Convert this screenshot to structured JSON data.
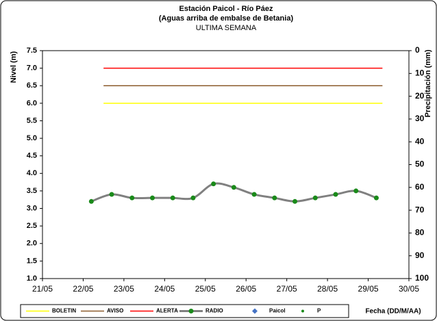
{
  "chart_data": {
    "type": "line",
    "title": "Estación Paicol  - Río Páez",
    "subtitle": "(Aguas arriba de embalse de Betania)",
    "period": "ULTIMA SEMANA",
    "y_label": "Nivel (m)",
    "y2_label": "Precipitación (mm)",
    "x_label": "Fecha (DD/M/AA)",
    "xlim": [
      21,
      30
    ],
    "xticks": [
      {
        "value": 21,
        "label": "21/05"
      },
      {
        "value": 22,
        "label": "22/05"
      },
      {
        "value": 23,
        "label": "23/05"
      },
      {
        "value": 24,
        "label": "24/05"
      },
      {
        "value": 25,
        "label": "25/05"
      },
      {
        "value": 26,
        "label": "26/05"
      },
      {
        "value": 27,
        "label": "27/05"
      },
      {
        "value": 28,
        "label": "28/05"
      },
      {
        "value": 29,
        "label": "29/05"
      },
      {
        "value": 30,
        "label": "30/05"
      }
    ],
    "ylim": [
      1,
      7.5
    ],
    "yticks": [
      {
        "value": 1,
        "label": "1.0"
      },
      1.5,
      {
        "value": 2,
        "label": "2.0"
      },
      2.5,
      {
        "value": 3,
        "label": "3.0"
      },
      3.5,
      {
        "value": 4,
        "label": "4.0"
      },
      4.5,
      {
        "value": 5,
        "label": "5.0"
      },
      5.5,
      {
        "value": 6,
        "label": "6.0"
      },
      6.5,
      {
        "value": 7,
        "label": "7.0"
      },
      7.5
    ],
    "y2lim": [
      100,
      0
    ],
    "y2ticks": [
      0,
      10,
      20,
      30,
      40,
      50,
      60,
      70,
      80,
      90,
      100
    ],
    "grid": false,
    "series": [
      {
        "name": "BOLETIN",
        "color": "#ffff00",
        "marker": "none",
        "x": [
          22.5,
          29.35
        ],
        "values": [
          6,
          6
        ]
      },
      {
        "name": "AVISO",
        "color": "#8b5a2b",
        "marker": "none",
        "x": [
          22.5,
          29.35
        ],
        "values": [
          6.5,
          6.5
        ]
      },
      {
        "name": "ALERTA",
        "color": "#ff0000",
        "marker": "none",
        "x": [
          22.5,
          29.35
        ],
        "values": [
          7,
          7
        ]
      },
      {
        "name": "RADIO",
        "color": "#808080",
        "marker": "circle",
        "marker_color": "#1a8a1a",
        "x": [
          22.2,
          22.7,
          23.2,
          23.7,
          24.2,
          24.7,
          25.2,
          25.7,
          26.2,
          26.7,
          27.2,
          27.7,
          28.2,
          28.7,
          29.2
        ],
        "values": [
          3.2,
          3.4,
          3.3,
          3.3,
          3.3,
          3.3,
          3.7,
          3.6,
          3.4,
          3.3,
          3.2,
          3.3,
          3.4,
          3.5,
          3.3
        ]
      },
      {
        "name": "Paicol",
        "color": "#4472c4",
        "marker": "diamond",
        "x": [],
        "values": []
      },
      {
        "name": "P",
        "color": "#1a8a1a",
        "marker": "dot",
        "x": [],
        "values": []
      }
    ]
  }
}
